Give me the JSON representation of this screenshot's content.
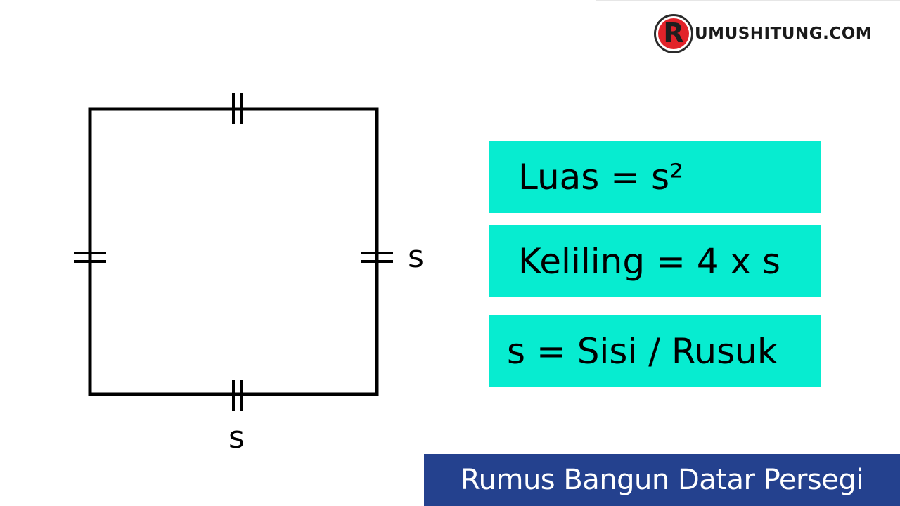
{
  "brand": {
    "logo_letter": "R",
    "logo_text": "UMUSHITUNG.COM",
    "accent_color": "#e2232a"
  },
  "diagram": {
    "shape": "square",
    "side_label_right": "s",
    "side_label_bottom": "s",
    "stroke_color": "#000000"
  },
  "formulas": {
    "area": "Luas = s²",
    "perimeter": "Keliling = 4 x s",
    "legend": "s = Sisi / Rusuk",
    "box_color": "#07ecd0"
  },
  "banner": {
    "title": "Rumus Bangun Datar Persegi",
    "color": "#24418e"
  }
}
